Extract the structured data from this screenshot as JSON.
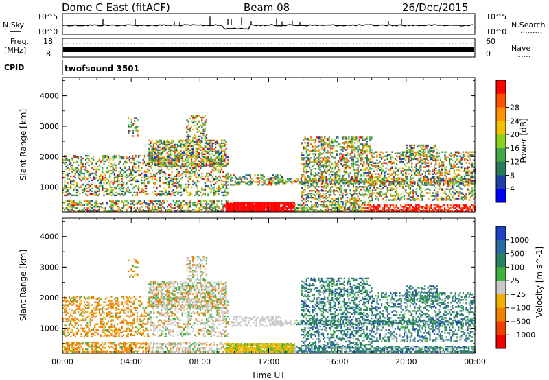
{
  "header": {
    "title": "Dome C East (fitACF)",
    "beam": "Beam 08",
    "date": "26/Dec/2015"
  },
  "strip_nsky": {
    "label": "N.Sky",
    "right_label": "N.Search",
    "tick_top": "10^5",
    "tick_bottom": "10^0",
    "right_tick_top": "10^5",
    "right_tick_bottom": "10^0"
  },
  "strip_freq": {
    "label_top": "Freq.",
    "label_bottom": "[MHz]",
    "tick_top": "18",
    "tick_bottom": "8",
    "right_label": "Nave",
    "right_tick_top": "60",
    "right_tick_bottom": "0"
  },
  "strip_cpid": {
    "label": "CPID",
    "value": "twofsound 3501"
  },
  "chart_data": [
    {
      "type": "heatmap",
      "name": "power",
      "ylabel": "Slant Range [km]",
      "yticks": [
        "1000",
        "2000",
        "3000",
        "4000"
      ],
      "ylim": [
        180,
        4600
      ],
      "xlim": [
        0,
        24
      ],
      "colorbar_label": "Power [dB]",
      "colorbar_ticks": [
        "4",
        "8",
        "12",
        "16",
        "20",
        "24",
        "28"
      ],
      "colorbar_colors": [
        "#0000ff",
        "#1f3fa8",
        "#2a7a5a",
        "#44a848",
        "#8cd020",
        "#f0c000",
        "#ff9000",
        "#ff5000",
        "#ff0000"
      ]
    },
    {
      "type": "heatmap",
      "name": "velocity",
      "ylabel": "Slant Range [km]",
      "yticks": [
        "1000",
        "2000",
        "3000",
        "4000"
      ],
      "ylim": [
        180,
        4600
      ],
      "xlim": [
        0,
        24
      ],
      "xticks": [
        "00:00",
        "04:00",
        "08:00",
        "12:00",
        "16:00",
        "20:00",
        "00:00"
      ],
      "xlabel": "Time UT",
      "colorbar_label": "Velocity [m s^-1]",
      "colorbar_ticks": [
        "1000",
        "500",
        "100",
        "25",
        "−25",
        "−100",
        "−500",
        "−1000"
      ],
      "colorbar_colors": [
        "#2040c0",
        "#2a6aa0",
        "#2a8060",
        "#40b040",
        "#c8c8c8",
        "#f0b000",
        "#f08000",
        "#f04000",
        "#f00000"
      ]
    }
  ]
}
